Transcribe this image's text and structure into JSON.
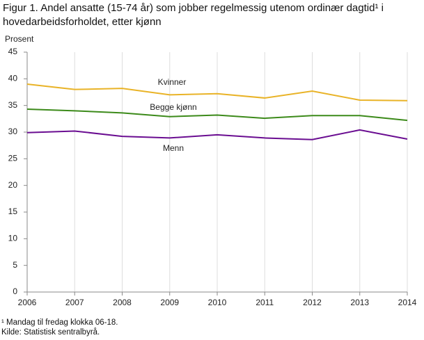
{
  "chart_data": {
    "type": "line",
    "title": "Figur 1. Andel ansatte (15-74 år) som jobber regelmessig utenom ordinær dagtid¹  i hovedarbeidsforholdet, etter kjønn",
    "y_label": "Prosent",
    "footnote": "¹ Mandag til fredag klokka 06-18.",
    "source": "Kilde: Statistisk sentralbyrå.",
    "x": [
      2006,
      2007,
      2008,
      2009,
      2010,
      2011,
      2012,
      2013,
      2014
    ],
    "xlim": [
      2006,
      2014
    ],
    "xticks": [
      2006,
      2007,
      2008,
      2009,
      2010,
      2011,
      2012,
      2013,
      2014
    ],
    "ylim": [
      0,
      45
    ],
    "yticks": [
      0,
      5,
      10,
      15,
      20,
      25,
      30,
      35,
      40,
      45
    ],
    "grid": "x",
    "series": [
      {
        "name": "Kvinner",
        "color": "#e9b327",
        "values": [
          39.0,
          38.0,
          38.2,
          37.0,
          37.2,
          36.4,
          37.7,
          36.0,
          35.9
        ]
      },
      {
        "name": "Begge  kjønn",
        "color": "#3c8a1a",
        "values": [
          34.3,
          34.0,
          33.6,
          32.9,
          33.2,
          32.6,
          33.1,
          33.1,
          32.2
        ]
      },
      {
        "name": "Menn",
        "color": "#6a0d91",
        "values": [
          29.9,
          30.2,
          29.2,
          28.9,
          29.5,
          28.9,
          28.6,
          30.4,
          28.7
        ]
      }
    ]
  }
}
